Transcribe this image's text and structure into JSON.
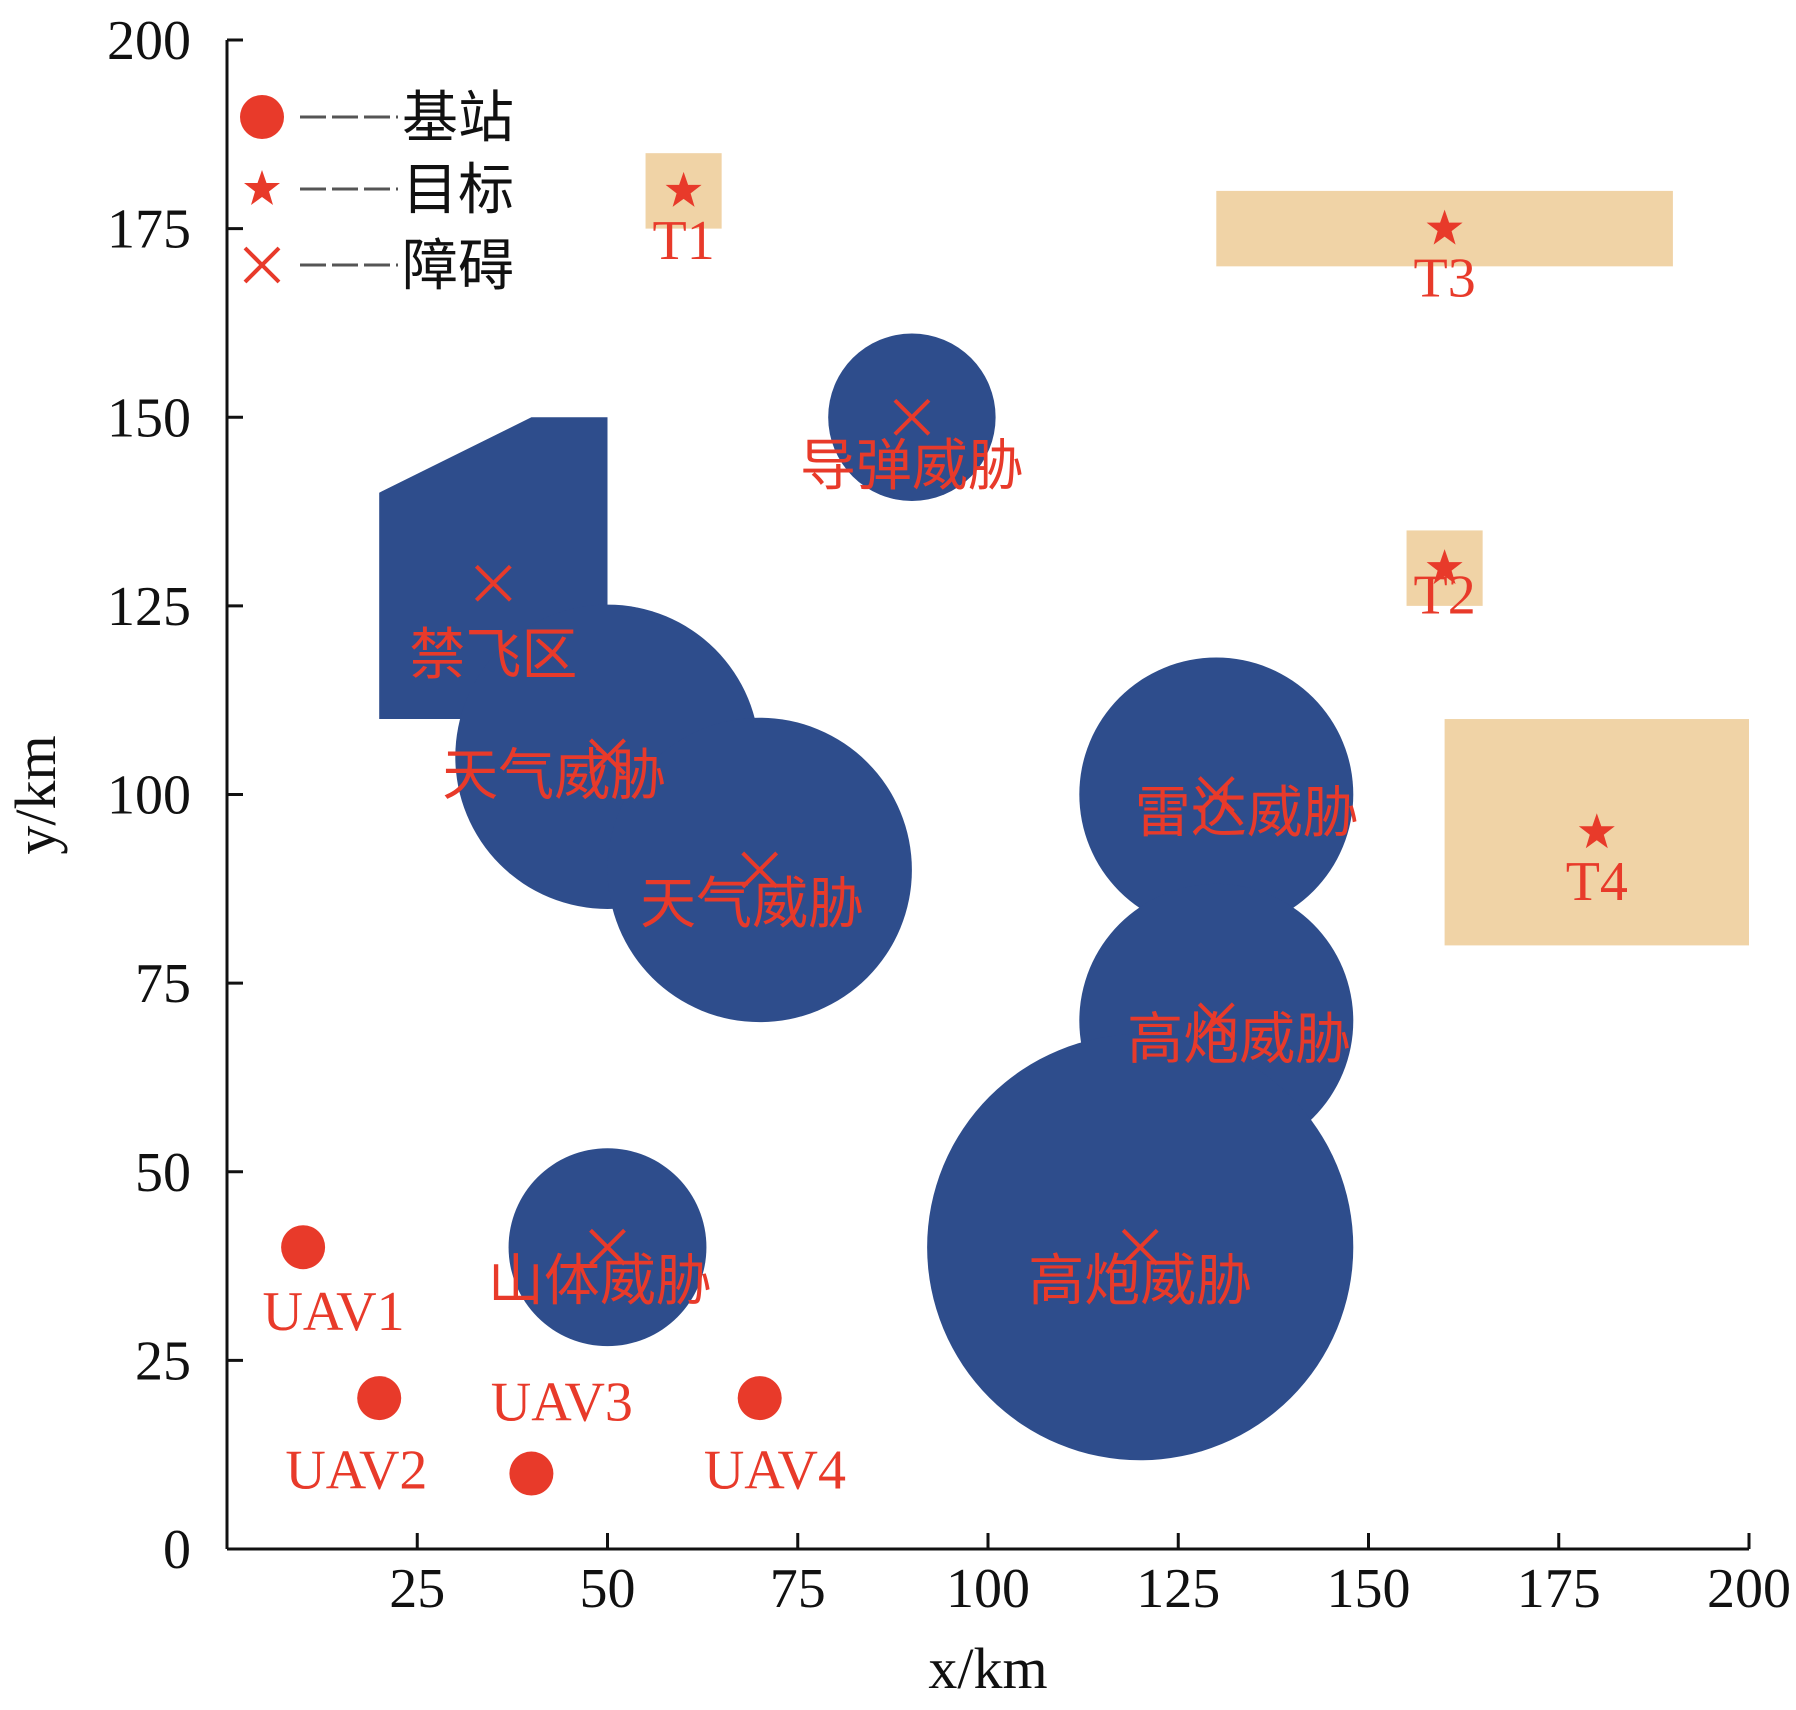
{
  "chart_data": {
    "type": "scatter",
    "xlabel": "x/km",
    "ylabel": "y/km",
    "xlim": [
      0,
      200
    ],
    "ylim": [
      0,
      200
    ],
    "x_ticks": [
      25,
      50,
      75,
      100,
      125,
      150,
      175,
      200
    ],
    "y_ticks": [
      0,
      25,
      50,
      75,
      100,
      125,
      150,
      175,
      200
    ],
    "grid": false,
    "legend": {
      "placement": "top-left",
      "entries": [
        {
          "marker": "circle",
          "label": "基站"
        },
        {
          "marker": "star",
          "label": "目标"
        },
        {
          "marker": "x",
          "label": "障碍"
        }
      ]
    },
    "colors": {
      "threat": "#2e4d8c",
      "target_zone": "#f0d3a6",
      "marker": "#e83a2a",
      "axis": "#111111"
    },
    "base_stations": [
      {
        "name": "UAV1",
        "x": 10,
        "y": 40
      },
      {
        "name": "UAV2",
        "x": 20,
        "y": 20
      },
      {
        "name": "UAV3",
        "x": 40,
        "y": 10
      },
      {
        "name": "UAV4",
        "x": 70,
        "y": 20
      }
    ],
    "targets": [
      {
        "name": "T1",
        "x": 60,
        "y": 180,
        "zone": {
          "x0": 55,
          "x1": 65,
          "y0": 175,
          "y1": 185
        }
      },
      {
        "name": "T2",
        "x": 160,
        "y": 130,
        "zone": {
          "x0": 155,
          "x1": 165,
          "y0": 125,
          "y1": 135
        }
      },
      {
        "name": "T3",
        "x": 160,
        "y": 175,
        "zone": {
          "x0": 130,
          "x1": 190,
          "y0": 170,
          "y1": 180
        }
      },
      {
        "name": "T4",
        "x": 180,
        "y": 95,
        "zone": {
          "x0": 160,
          "x1": 200,
          "y0": 80,
          "y1": 110
        }
      }
    ],
    "threats": [
      {
        "label": "禁飞区",
        "shape": "polygon",
        "center": [
          35,
          128
        ],
        "vertices": [
          [
            20,
            110
          ],
          [
            20,
            140
          ],
          [
            40,
            150
          ],
          [
            50,
            150
          ],
          [
            50,
            110
          ]
        ]
      },
      {
        "label": "导弹威胁",
        "shape": "circle",
        "x": 90,
        "y": 150,
        "r": 11
      },
      {
        "label": "天气威胁",
        "shape": "circle",
        "x": 50,
        "y": 105,
        "r": 20
      },
      {
        "label": "天气威胁",
        "shape": "circle",
        "x": 70,
        "y": 90,
        "r": 20
      },
      {
        "label": "雷达威胁",
        "shape": "circle",
        "x": 130,
        "y": 100,
        "r": 18
      },
      {
        "label": "高炮威胁",
        "shape": "circle",
        "x": 130,
        "y": 70,
        "r": 18
      },
      {
        "label": "高炮威胁",
        "shape": "circle",
        "x": 120,
        "y": 40,
        "r": 28
      },
      {
        "label": "山体威胁",
        "shape": "circle",
        "x": 50,
        "y": 40,
        "r": 13
      }
    ]
  }
}
